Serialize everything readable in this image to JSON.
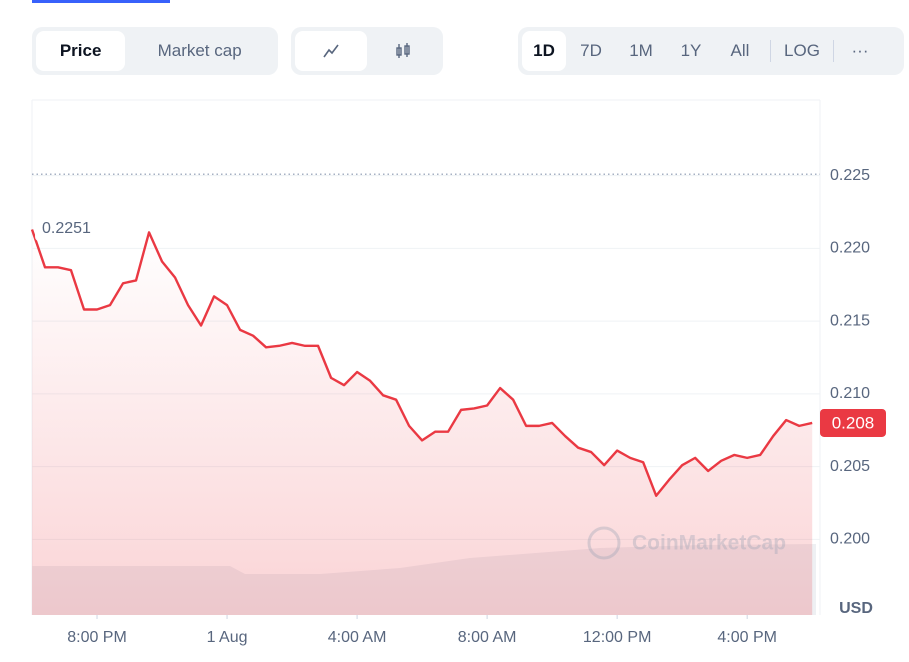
{
  "toolbar": {
    "tabs": [
      "Price",
      "Market cap"
    ],
    "ranges": [
      "1D",
      "7D",
      "1M",
      "1Y",
      "All"
    ],
    "log": "LOG",
    "more": "···"
  },
  "chart_data": {
    "type": "line",
    "x": [
      0,
      1,
      2,
      3,
      4,
      5,
      6,
      7,
      8,
      9,
      10,
      11,
      12,
      13,
      14,
      15,
      16,
      17,
      18,
      19,
      20,
      21,
      22,
      23,
      24,
      25,
      26,
      27,
      28,
      29,
      30,
      31,
      32,
      33,
      34,
      35,
      36,
      37,
      38,
      39,
      40,
      41,
      42,
      43,
      44,
      45,
      46,
      47,
      48,
      49,
      50,
      51,
      52,
      53,
      54,
      55,
      56,
      57,
      58,
      59,
      60
    ],
    "series": [
      {
        "name": "Price",
        "color": "#ea3943",
        "values": [
          0.2213,
          0.2187,
          0.2187,
          0.2185,
          0.2158,
          0.2158,
          0.2161,
          0.2176,
          0.2178,
          0.2211,
          0.2191,
          0.218,
          0.2161,
          0.2147,
          0.2167,
          0.2161,
          0.2144,
          0.214,
          0.2132,
          0.2133,
          0.2135,
          0.2133,
          0.2133,
          0.2111,
          0.2106,
          0.2115,
          0.2109,
          0.2099,
          0.2096,
          0.2078,
          0.2068,
          0.2074,
          0.2074,
          0.2089,
          0.209,
          0.2092,
          0.2104,
          0.2096,
          0.2078,
          0.2078,
          0.208,
          0.2071,
          0.2063,
          0.206,
          0.2051,
          0.2061,
          0.2056,
          0.2053,
          0.203,
          0.2041,
          0.2051,
          0.2056,
          0.2047,
          0.2054,
          0.2058,
          0.2056,
          0.2058,
          0.2071,
          0.2082,
          0.2078,
          0.208
        ]
      }
    ],
    "xlim": [
      0,
      60.6
    ],
    "xticks": [
      {
        "value": 5,
        "label": "8:00 PM"
      },
      {
        "value": 15,
        "label": "1 Aug"
      },
      {
        "value": 25,
        "label": "4:00 AM"
      },
      {
        "value": 35,
        "label": "8:00 AM"
      },
      {
        "value": 45,
        "label": "12:00 PM"
      },
      {
        "value": 55,
        "label": "4:00 PM"
      }
    ],
    "ylim": [
      0.1948,
      0.2302
    ],
    "yticks": [
      {
        "value": 0.2,
        "label": "0.200"
      },
      0.205,
      {
        "value": 0.21,
        "label": "0.210"
      },
      0.215,
      {
        "value": 0.22,
        "label": "0.220"
      },
      0.225
    ],
    "y_unit": "USD",
    "open_price": {
      "value": 0.2251,
      "label": "0.2251"
    },
    "current_price": 0.208,
    "watermark": "CoinMarketCap",
    "grid": true
  }
}
